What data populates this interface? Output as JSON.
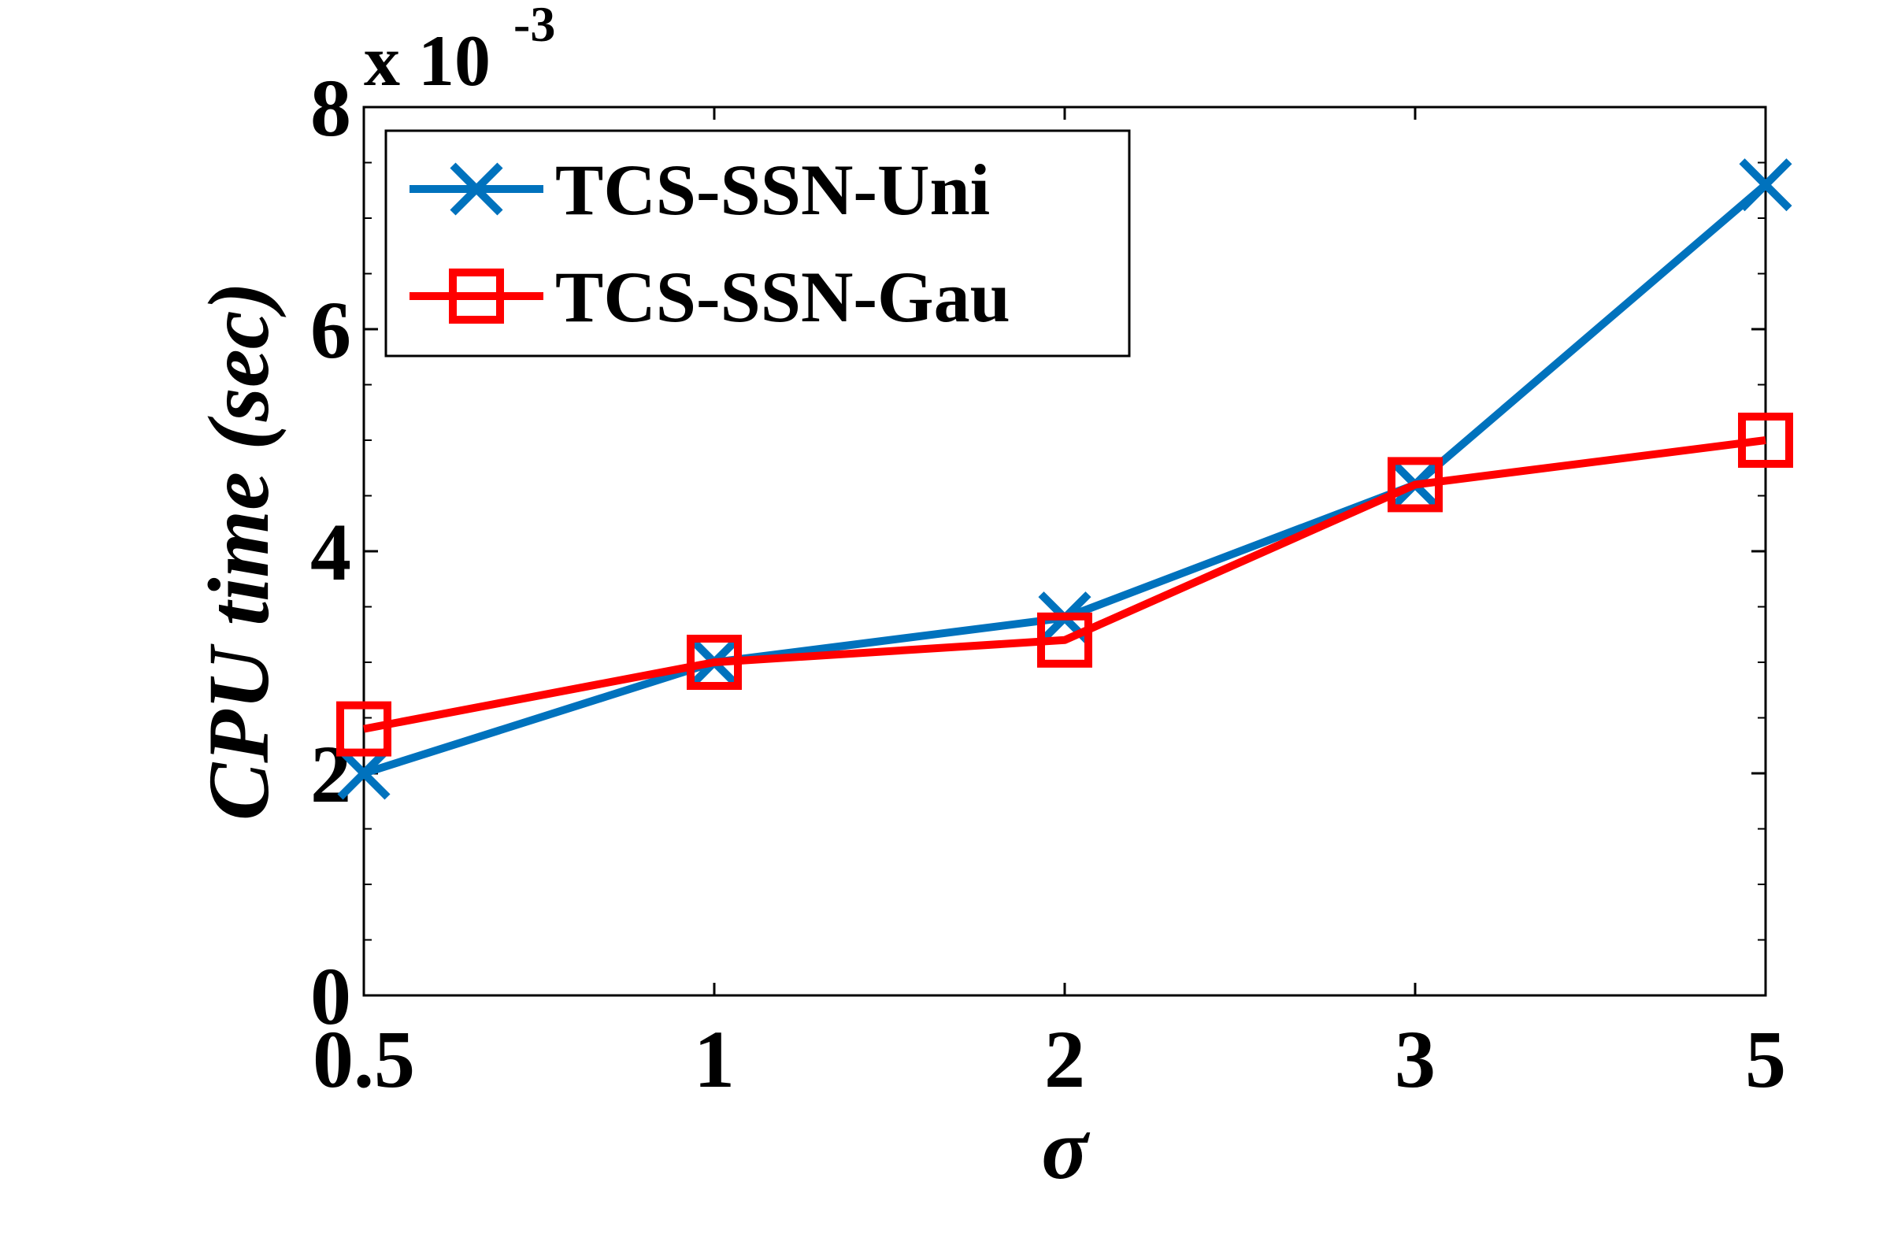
{
  "chart_data": {
    "type": "line",
    "title": "",
    "xlabel": "σ",
    "ylabel": "CPU time (sec)",
    "categories": [
      "0.5",
      "1",
      "2",
      "3",
      "5"
    ],
    "y_ticks": [
      "0",
      "2",
      "4",
      "6",
      "8"
    ],
    "y_multiplier": {
      "base": "x 10",
      "exponent": "-3"
    },
    "ylim": [
      0,
      0.008
    ],
    "grid": false,
    "legend_position": "top-left",
    "series": [
      {
        "name": "TCS-SSN-Uni",
        "color": "#0072BD",
        "marker": "x",
        "values": [
          0.002,
          0.003,
          0.0034,
          0.0046,
          0.0073
        ]
      },
      {
        "name": "TCS-SSN-Gau",
        "color": "#FF0000",
        "marker": "square",
        "values": [
          0.0024,
          0.003,
          0.0032,
          0.0046,
          0.005
        ]
      }
    ]
  }
}
